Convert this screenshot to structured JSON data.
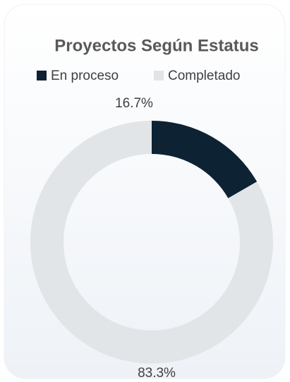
{
  "chart_data": {
    "type": "donut",
    "title": "Proyectos Según Estatus",
    "categories": [
      "En proceso",
      "Completado"
    ],
    "values": [
      16.7,
      83.3
    ],
    "value_labels": [
      "16.7%",
      "83.3%"
    ],
    "colors": [
      "#0d2233",
      "#e1e5e8"
    ],
    "legend": "top"
  }
}
